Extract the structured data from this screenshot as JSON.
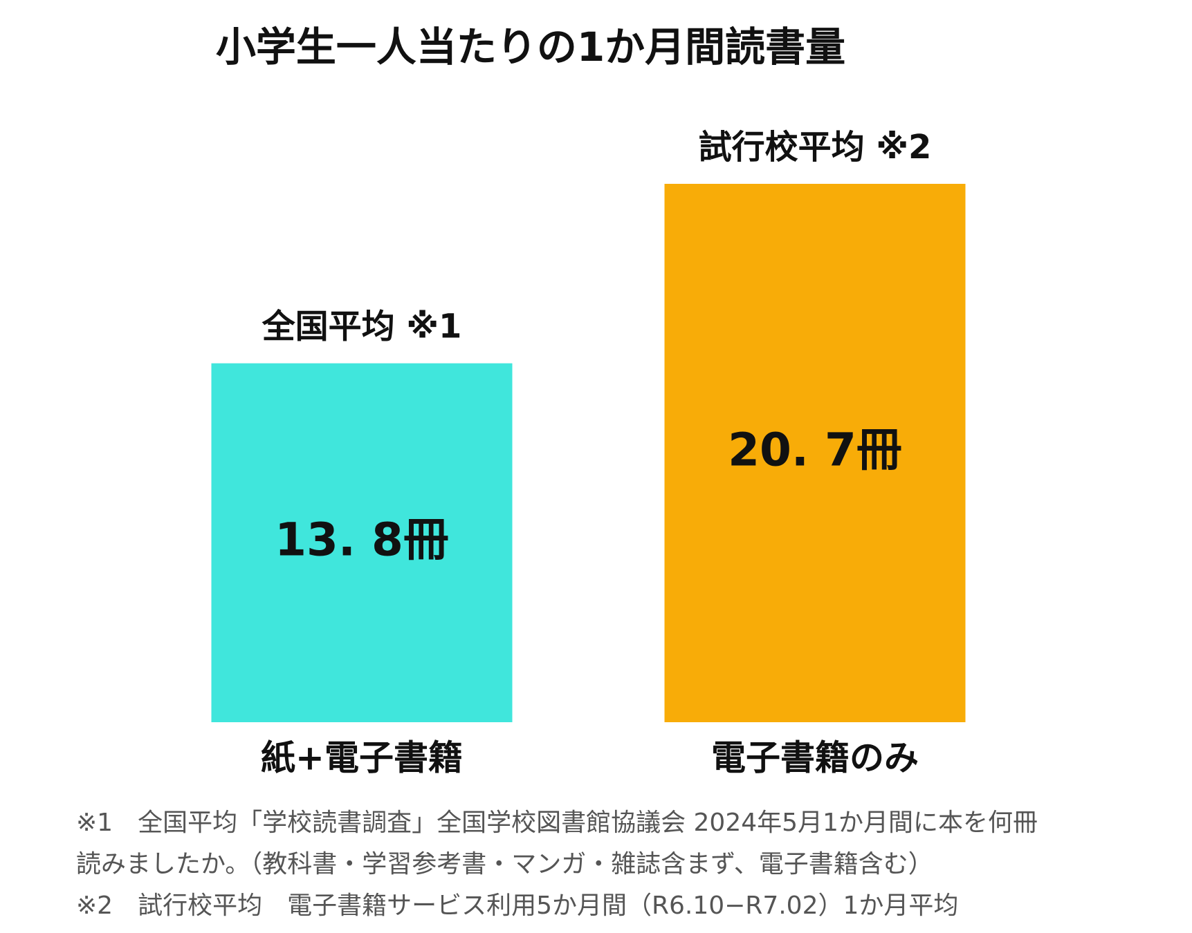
{
  "chart_data": {
    "type": "bar",
    "title": "小学生一人当たりの1か月間読書量",
    "categories": [
      "紙+電子書籍",
      "電子書籍のみ"
    ],
    "bar_labels": [
      "全国平均 ※1",
      "試行校平均 ※2"
    ],
    "values": [
      13.8,
      20.7
    ],
    "value_labels": [
      "13. 8冊",
      "20. 7冊"
    ],
    "colors": [
      "#40e6dc",
      "#f8ac08"
    ],
    "footnotes": [
      "※1　全国平均「学校読書調査」全国学校図書館協議会 2024年5月1か月間に本を何冊",
      "読みましたか。（教科書・学習参考書・マンガ・雑誌含まず、電子書籍含む）",
      "※2　試行校平均　電子書籍サービス利用5か月間（R6.10−R7.02）1か月平均"
    ]
  }
}
